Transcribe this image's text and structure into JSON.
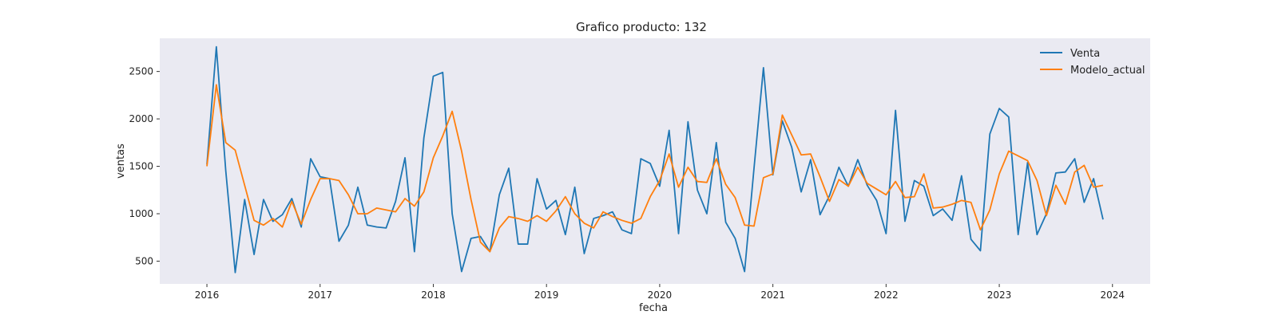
{
  "chart_data": {
    "type": "line",
    "title": "Grafico producto: 132",
    "xlabel": "fecha",
    "ylabel": "ventas",
    "x_start": "2016-01",
    "x_frequency": "monthly",
    "xlim": [
      "2015-08",
      "2024-05"
    ],
    "ylim": [
      260,
      2850
    ],
    "x_ticks": [
      {
        "value": "2016-01",
        "label": "2016"
      },
      {
        "value": "2017-01",
        "label": "2017"
      },
      {
        "value": "2018-01",
        "label": "2018"
      },
      {
        "value": "2019-01",
        "label": "2019"
      },
      {
        "value": "2020-01",
        "label": "2020"
      },
      {
        "value": "2021-01",
        "label": "2021"
      },
      {
        "value": "2022-01",
        "label": "2022"
      },
      {
        "value": "2023-01",
        "label": "2023"
      },
      {
        "value": "2024-01",
        "label": "2024"
      }
    ],
    "y_ticks": [
      500,
      1000,
      1500,
      2000,
      2500
    ],
    "grid": false,
    "background": "#EAEAF2",
    "legend_position": "top-right",
    "series": [
      {
        "name": "Venta",
        "color": "#1f77b4",
        "values": [
          1520,
          2760,
          1450,
          380,
          1150,
          570,
          1150,
          920,
          990,
          1160,
          860,
          1580,
          1390,
          1370,
          710,
          880,
          1280,
          880,
          860,
          850,
          1130,
          1590,
          600,
          1800,
          2450,
          2490,
          1000,
          390,
          740,
          760,
          600,
          1200,
          1480,
          680,
          680,
          1370,
          1050,
          1140,
          780,
          1280,
          580,
          950,
          980,
          1020,
          830,
          790,
          1580,
          1530,
          1290,
          1880,
          790,
          1970,
          1250,
          1000,
          1750,
          910,
          740,
          390,
          1480,
          2540,
          1410,
          1980,
          1700,
          1230,
          1570,
          990,
          1190,
          1490,
          1290,
          1570,
          1300,
          1140,
          790,
          2090,
          920,
          1350,
          1290,
          980,
          1050,
          930,
          1400,
          730,
          610,
          1840,
          2110,
          2020,
          780,
          1540,
          780,
          1000,
          1430,
          1440,
          1580,
          1120,
          1370,
          940
        ]
      },
      {
        "name": "Modelo_actual",
        "color": "#ff7f0e",
        "values": [
          1500,
          2360,
          1750,
          1670,
          1300,
          930,
          880,
          950,
          860,
          1130,
          890,
          1150,
          1370,
          1370,
          1350,
          1200,
          1000,
          1000,
          1060,
          1040,
          1020,
          1160,
          1080,
          1230,
          1590,
          1820,
          2080,
          1660,
          1150,
          700,
          600,
          850,
          970,
          950,
          920,
          980,
          920,
          1030,
          1180,
          1000,
          900,
          850,
          1020,
          970,
          930,
          900,
          950,
          1180,
          1350,
          1630,
          1280,
          1490,
          1340,
          1330,
          1580,
          1310,
          1170,
          880,
          870,
          1380,
          1420,
          2040,
          1830,
          1620,
          1630,
          1390,
          1130,
          1360,
          1290,
          1490,
          1320,
          1260,
          1200,
          1340,
          1170,
          1180,
          1420,
          1060,
          1070,
          1100,
          1140,
          1120,
          830,
          1040,
          1420,
          1660,
          1610,
          1560,
          1350,
          980,
          1300,
          1100,
          1440,
          1510,
          1280,
          1300
        ]
      }
    ]
  }
}
